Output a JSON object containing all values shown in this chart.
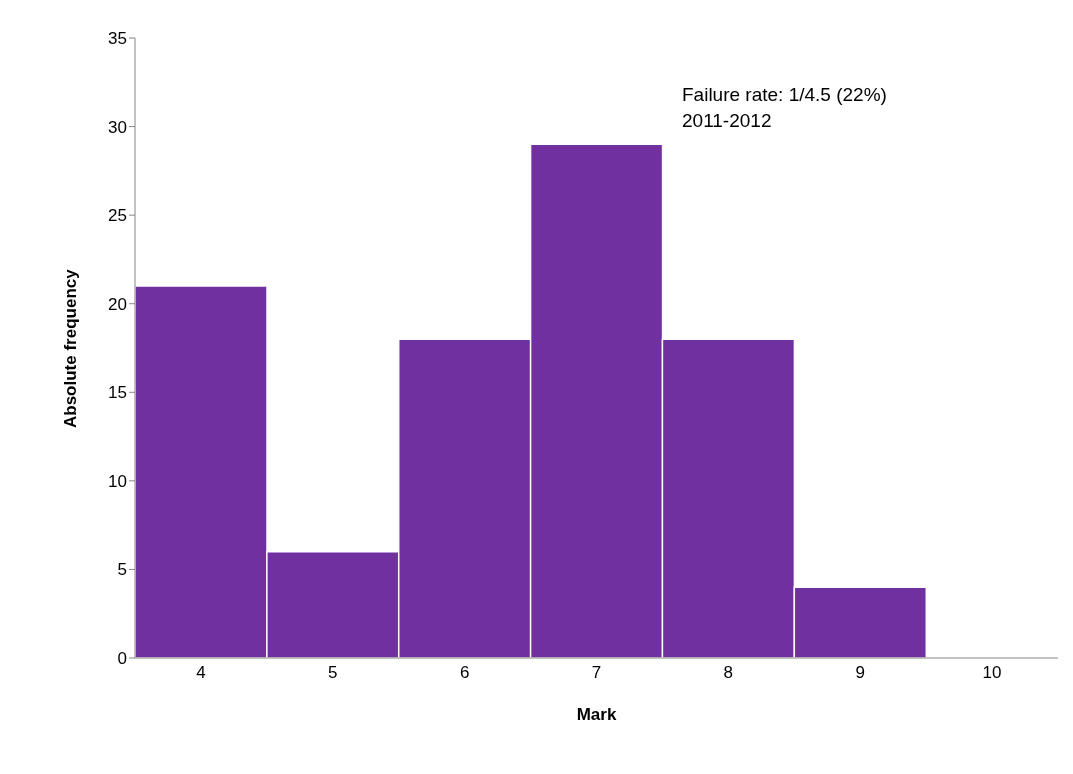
{
  "chart_data": {
    "type": "bar",
    "xlabel": "Mark",
    "ylabel": "Absolute frequency",
    "categories": [
      "4",
      "5",
      "6",
      "7",
      "8",
      "9",
      "10"
    ],
    "values": [
      21,
      6,
      18,
      29,
      18,
      4,
      0
    ],
    "color": "#7030a0",
    "ylim": [
      0,
      35
    ],
    "yticks": [
      0,
      5,
      10,
      15,
      20,
      25,
      30,
      35
    ],
    "grid": false,
    "legend": false,
    "annotations": [
      "Failure rate: 1/4.5 (22%)",
      "2011-2012"
    ]
  }
}
